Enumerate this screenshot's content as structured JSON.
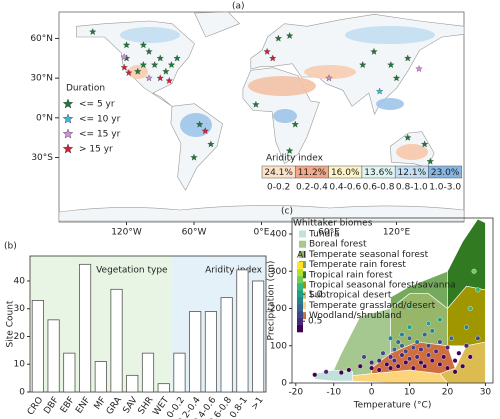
{
  "chart_data": [
    {
      "type": "map",
      "label": "(a)",
      "xlim": [
        -180,
        180
      ],
      "ylim": [
        -78,
        80
      ],
      "xticks": [
        {
          "value": -120,
          "label": "120°W"
        },
        {
          "value": -60,
          "label": "60°W"
        },
        {
          "value": 0,
          "label": "0°E"
        },
        {
          "value": 60,
          "label": "60°E"
        },
        {
          "value": 120,
          "label": "120°E"
        }
      ],
      "yticks": [
        {
          "value": 60,
          "label": "60°N"
        },
        {
          "value": 30,
          "label": "30°N"
        },
        {
          "value": 0,
          "label": "0°N"
        },
        {
          "value": -30,
          "label": "30°S"
        }
      ],
      "legend_title": "Duration",
      "series": [
        {
          "name": "<= 5 yr",
          "color": "#1e7a3a"
        },
        {
          "name": "<= 10 yr",
          "color": "#3fb8d8"
        },
        {
          "name": "<= 15 yr",
          "color": "#d88be0"
        },
        {
          "name": "> 15 yr",
          "color": "#d0203a"
        }
      ],
      "sites": {
        "lon": [
          -120,
          -105,
          -95,
          -90,
          -85,
          -80,
          -100,
          -110,
          -75,
          -118,
          -122,
          -90,
          -82,
          -100,
          -120,
          -105,
          -150,
          5,
          10,
          15,
          25,
          90,
          115,
          120,
          130,
          100,
          140,
          30,
          -5,
          25,
          -55,
          -60,
          -45,
          -50,
          150,
          130,
          145,
          60,
          -122,
          105
        ],
        "lat": [
          45,
          40,
          40,
          45,
          35,
          40,
          50,
          35,
          45,
          34,
          38,
          30,
          28,
          30,
          55,
          55,
          65,
          50,
          45,
          60,
          62,
          40,
          40,
          30,
          45,
          50,
          37,
          -5,
          10,
          -25,
          -5,
          -30,
          -20,
          -10,
          -33,
          -15,
          -20,
          30,
          46,
          20
        ],
        "group": [
          0,
          0,
          0,
          0,
          0,
          0,
          0,
          0,
          0,
          3,
          3,
          3,
          3,
          2,
          0,
          0,
          0,
          3,
          3,
          0,
          0,
          0,
          0,
          0,
          0,
          0,
          2,
          0,
          0,
          0,
          0,
          0,
          0,
          3,
          0,
          0,
          0,
          2,
          2,
          1
        ]
      },
      "aridity": {
        "title": "Aridity index",
        "categories": [
          "0-0.2",
          "0.2-0.4",
          "0.4-0.6",
          "0.6-0.8",
          "0.8-1.0",
          "1.0-3.0"
        ],
        "values": [
          24.1,
          11.2,
          16.0,
          13.6,
          12.1,
          23.0
        ],
        "value_labels": [
          "24.1%",
          "11.2%",
          "16.0%",
          "13.6%",
          "12.1%",
          "23.0%"
        ],
        "colors": [
          "#fbe1c8",
          "#f4a889",
          "#fdf3c6",
          "#dff3f2",
          "#c3def2",
          "#86b7e4"
        ]
      }
    },
    {
      "type": "bar",
      "label": "(b)",
      "ylabel": "Site Count",
      "ylim": [
        0,
        49
      ],
      "yticks": [
        0,
        10,
        20,
        30,
        40
      ],
      "color": "#ffffff",
      "groups": [
        {
          "name": "Vegetation type",
          "color": "#e8f5e4",
          "categories": [
            "CRO",
            "DBF",
            "EBF",
            "ENF",
            "MF",
            "GRA",
            "SAV",
            "SHR",
            "WET"
          ],
          "values": [
            33,
            26,
            14,
            46,
            11,
            37,
            6,
            14,
            3
          ]
        },
        {
          "name": "Aridity index",
          "color": "#e4f1f8",
          "categories": [
            "0-0.2",
            "0.2-0.4",
            "0.4-0.6",
            "0.6-0.8",
            "0.8-1",
            ">1"
          ],
          "values": [
            14,
            29,
            29,
            34,
            44,
            40
          ]
        }
      ]
    },
    {
      "type": "scatter",
      "label": "(c)",
      "xlabel": "Temperature (°C)",
      "ylabel": "Precipitation (cm)",
      "xlim": [
        -21,
        32
      ],
      "ylim": [
        0,
        443
      ],
      "xticks": [
        -20,
        -10,
        0,
        10,
        20,
        30
      ],
      "yticks": [
        0,
        100,
        200,
        300,
        400
      ],
      "legend_title": "Whittaker biomes",
      "biomes": [
        {
          "name": "Tundra",
          "color": "#c1e1dd",
          "x": [
            -15,
            -10,
            -5,
            -5,
            -10,
            -15
          ],
          "y": [
            10,
            5,
            5,
            30,
            35,
            25
          ]
        },
        {
          "name": "Boreal forest",
          "color": "#a5c790",
          "x": [
            -10,
            -5,
            -5,
            0,
            0,
            5,
            5,
            -3,
            -8
          ],
          "y": [
            35,
            30,
            20,
            25,
            40,
            80,
            200,
            180,
            80
          ]
        },
        {
          "name": "Temperate seasonal forest",
          "color": "#97b669",
          "x": [
            5,
            12,
            20,
            20,
            15,
            10,
            5
          ],
          "y": [
            80,
            110,
            100,
            200,
            240,
            240,
            200
          ]
        },
        {
          "name": "Temperate rain forest",
          "color": "#75a95e",
          "x": [
            5,
            10,
            15,
            20,
            20,
            10,
            5
          ],
          "y": [
            200,
            240,
            240,
            200,
            300,
            260,
            230
          ]
        },
        {
          "name": "Tropical rain forest",
          "color": "#317a22",
          "x": [
            20,
            25,
            30,
            30,
            28,
            24,
            20
          ],
          "y": [
            200,
            260,
            250,
            430,
            440,
            380,
            300
          ]
        },
        {
          "name": "Tropical seasonal forest/savanna",
          "color": "#a09700",
          "x": [
            20,
            25,
            30,
            30,
            25,
            20
          ],
          "y": [
            100,
            100,
            110,
            250,
            260,
            200
          ]
        },
        {
          "name": "Subtropical desert",
          "color": "#dcbb50",
          "x": [
            20,
            30,
            30,
            25,
            22,
            18
          ],
          "y": [
            0,
            0,
            110,
            100,
            40,
            25
          ]
        },
        {
          "name": "Temperate grassland/desert",
          "color": "#fcd57a",
          "x": [
            -5,
            5,
            20,
            18,
            10,
            0,
            -5
          ],
          "y": [
            5,
            0,
            0,
            25,
            35,
            25,
            20
          ]
        },
        {
          "name": "Woodland/shrubland",
          "color": "#d16e3f",
          "x": [
            0,
            10,
            18,
            22,
            20,
            12,
            5,
            0
          ],
          "y": [
            25,
            35,
            25,
            40,
            100,
            110,
            80,
            40
          ]
        }
      ],
      "points": {
        "x": [
          -15,
          -12,
          -8,
          -6,
          -3,
          0,
          0,
          2,
          2,
          3,
          4,
          5,
          5,
          6,
          6,
          7,
          7,
          8,
          8,
          8,
          9,
          9,
          10,
          10,
          10,
          10,
          11,
          11,
          12,
          12,
          13,
          13,
          14,
          14,
          15,
          15,
          16,
          16,
          17,
          18,
          18,
          19,
          20,
          20,
          21,
          22,
          23,
          24,
          25,
          25,
          26,
          26,
          27,
          28,
          28,
          15,
          18,
          5,
          -2,
          22
        ],
        "y": [
          22,
          30,
          28,
          35,
          45,
          40,
          55,
          60,
          35,
          80,
          50,
          70,
          40,
          90,
          60,
          110,
          45,
          75,
          100,
          130,
          55,
          85,
          65,
          120,
          150,
          205,
          40,
          95,
          70,
          110,
          55,
          90,
          130,
          45,
          75,
          100,
          60,
          140,
          85,
          50,
          110,
          70,
          40,
          95,
          120,
          60,
          80,
          45,
          100,
          150,
          70,
          200,
          300,
          120,
          250,
          160,
          170,
          120,
          70,
          30
        ],
        "ai": [
          0.3,
          0.4,
          0.25,
          0.3,
          0.35,
          0.3,
          0.4,
          0.45,
          0.2,
          0.6,
          0.3,
          0.5,
          0.25,
          0.7,
          0.4,
          0.8,
          0.3,
          0.5,
          0.7,
          0.9,
          0.35,
          0.55,
          0.4,
          0.8,
          1.0,
          1.2,
          0.25,
          0.6,
          0.45,
          0.7,
          0.3,
          0.5,
          0.8,
          0.25,
          0.4,
          0.6,
          0.3,
          0.9,
          0.45,
          0.25,
          0.6,
          0.35,
          0.2,
          0.5,
          0.7,
          0.3,
          0.35,
          0.2,
          0.5,
          0.9,
          0.3,
          1.1,
          1.3,
          0.6,
          1.2,
          1.0,
          1.0,
          0.9,
          0.6,
          0.2
        ]
      },
      "colorbar": {
        "title": "AI",
        "colormap": "viridis",
        "lim": [
          0.3,
          1.6
        ],
        "ticks": [
          0.5,
          {
            "value": 1,
            "label": "1.0"
          }
        ]
      }
    }
  ]
}
